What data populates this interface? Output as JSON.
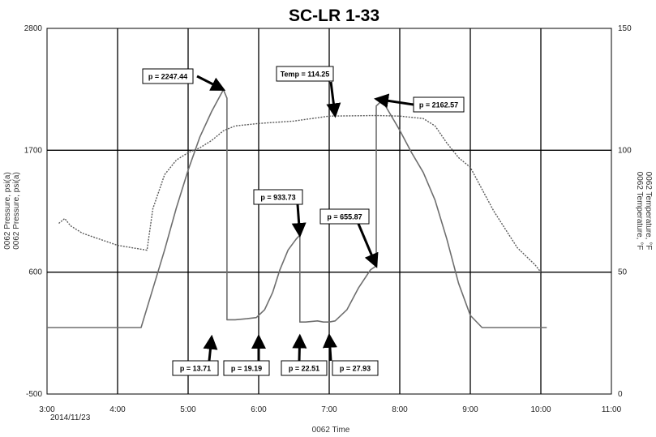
{
  "chart_data": {
    "type": "line",
    "title": "SC-LR 1-33",
    "xlabel": "0062 Time",
    "x_date_label": "2014/11/23",
    "ylabel_left": [
      "0062 Pressure, psi(a)",
      "0062 Pressure, psi(a)"
    ],
    "ylabel_right": [
      "0062 Temperature, °F",
      "0062 Temperature, °F"
    ],
    "x_ticks": [
      "3:00",
      "4:00",
      "5:00",
      "6:00",
      "7:00",
      "8:00",
      "9:00",
      "10:00",
      "11:00"
    ],
    "xlim": [
      "3:00",
      "11:00"
    ],
    "y_left_ticks": [
      -500,
      600,
      1700,
      2800
    ],
    "ylim_left": [
      -500,
      2800
    ],
    "y_right_ticks": [
      0,
      50,
      100,
      150
    ],
    "ylim_right": [
      0,
      150
    ],
    "grid": true,
    "series": [
      {
        "axis": "left",
        "style": "solid",
        "color": "#6e6e6e",
        "x": [
          "3:00",
          "4:20",
          "4:30",
          "4:40",
          "4:50",
          "5:00",
          "5:10",
          "5:20",
          "5:30",
          "5:33",
          "5:33",
          "5:40",
          "5:50",
          "5:58",
          "6:05",
          "6:12",
          "6:18",
          "6:25",
          "6:32",
          "6:35",
          "6:35",
          "6:40",
          "6:50",
          "6:55",
          "7:00",
          "7:05",
          "7:15",
          "7:25",
          "7:35",
          "7:40",
          "7:40",
          "7:45",
          "7:55",
          "8:00",
          "8:10",
          "8:20",
          "8:30",
          "8:40",
          "8:50",
          "9:00",
          "9:10",
          "9:20",
          "10:00",
          "10:05"
        ],
        "y": [
          100,
          100,
          450,
          800,
          1180,
          1520,
          1820,
          2050,
          2247,
          2170,
          170,
          170,
          180,
          190,
          260,
          420,
          620,
          800,
          900,
          934,
          150,
          150,
          160,
          150,
          150,
          160,
          260,
          460,
          620,
          656,
          2100,
          2150,
          1970,
          1880,
          1680,
          1500,
          1250,
          900,
          500,
          210,
          100,
          100,
          100,
          100
        ]
      },
      {
        "axis": "right",
        "style": "dotted",
        "color": "#5a5a5a",
        "x": [
          "3:10",
          "3:15",
          "3:20",
          "3:30",
          "4:00",
          "4:25",
          "4:30",
          "4:40",
          "4:50",
          "5:00",
          "5:10",
          "5:20",
          "5:30",
          "5:40",
          "6:00",
          "6:30",
          "7:00",
          "7:40",
          "8:00",
          "8:20",
          "8:30",
          "8:40",
          "8:50",
          "9:00",
          "9:20",
          "9:40",
          "9:55",
          "10:00"
        ],
        "y": [
          70,
          72,
          69,
          66,
          61,
          59,
          76,
          90,
          96,
          99,
          101,
          104,
          108,
          110,
          111,
          112,
          114,
          114.25,
          114,
          113,
          110,
          103,
          97,
          93,
          75,
          60,
          53,
          50
        ]
      }
    ],
    "annotations": [
      {
        "text": "p = 2247.44",
        "x": "5:30",
        "y": 2247.44
      },
      {
        "text": "Temp = 114.25",
        "x": "7:05",
        "y_temp": 114.25
      },
      {
        "text": "p = 2162.57",
        "x": "7:40",
        "y": 2162.57
      },
      {
        "text": "p = 933.73",
        "x": "6:35",
        "y": 933.73
      },
      {
        "text": "p = 655.87",
        "x": "7:40",
        "y": 655.87
      },
      {
        "text": "p = 13.71",
        "x": "5:20",
        "y": 13.71
      },
      {
        "text": "p = 19.19",
        "x": "6:00",
        "y": 19.19
      },
      {
        "text": "p = 22.51",
        "x": "6:35",
        "y": 22.51
      },
      {
        "text": "p = 27.93",
        "x": "7:00",
        "y": 27.93
      }
    ]
  }
}
